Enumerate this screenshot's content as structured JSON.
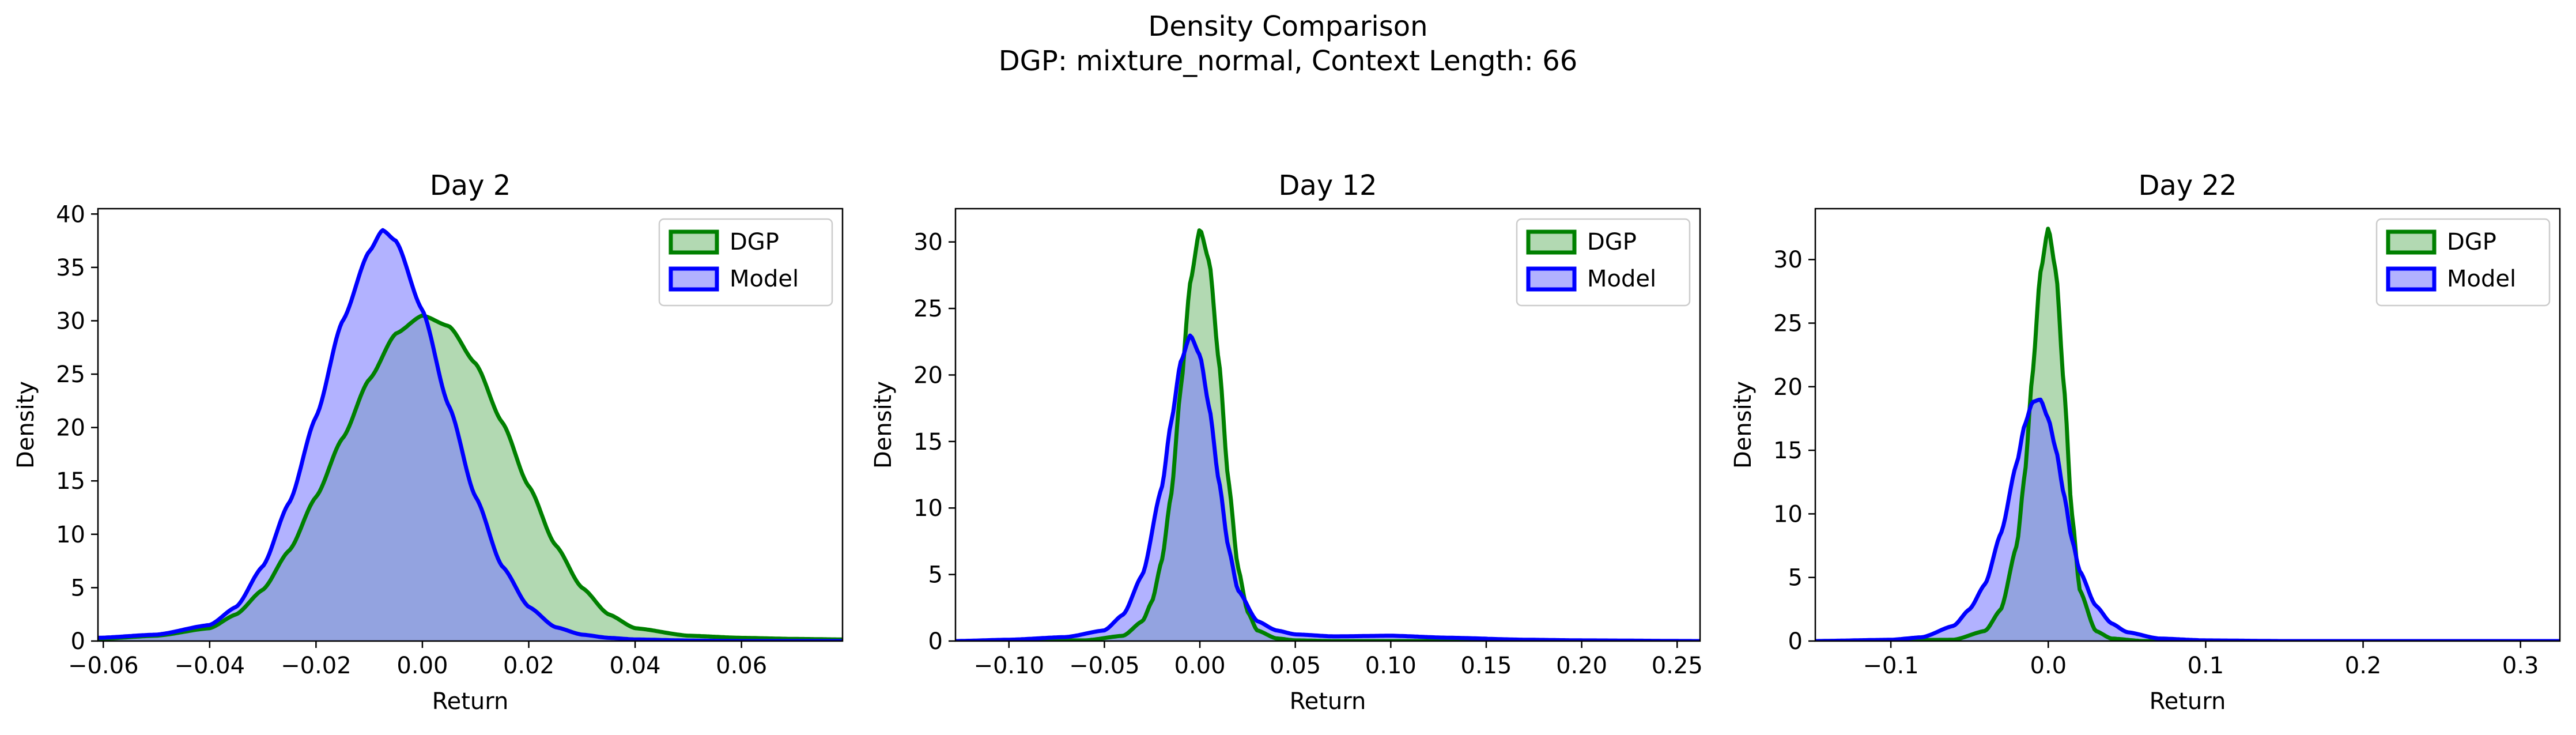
{
  "figure": {
    "title_line1": "Density Comparison",
    "title_line2": "DGP: mixture_normal, Context Length: 66"
  },
  "colors": {
    "dgp_line": "#008000",
    "dgp_fill": "#7fbf7f",
    "model_line": "#0000ff",
    "model_fill": "#7f7fff",
    "overlap_fill": "#7f9fbf"
  },
  "chart_data": [
    {
      "type": "area",
      "title": "Day 2",
      "xlabel": "Return",
      "ylabel": "Density",
      "xlim": [
        -0.061,
        0.079
      ],
      "ylim": [
        0,
        40.5
      ],
      "xticks": [
        -0.06,
        -0.04,
        -0.02,
        0.0,
        0.02,
        0.04,
        0.06
      ],
      "xtick_labels": [
        "−0.06",
        "−0.04",
        "−0.02",
        "0.00",
        "0.02",
        "0.04",
        "0.06"
      ],
      "yticks": [
        0,
        5,
        10,
        15,
        20,
        25,
        30,
        35,
        40
      ],
      "ytick_labels": [
        "0",
        "5",
        "10",
        "15",
        "20",
        "25",
        "30",
        "35",
        "40"
      ],
      "legend": "top-right",
      "series": [
        {
          "name": "DGP",
          "x": [
            -0.061,
            -0.05,
            -0.04,
            -0.035,
            -0.03,
            -0.025,
            -0.02,
            -0.015,
            -0.01,
            -0.005,
            0.0,
            0.005,
            0.01,
            0.015,
            0.02,
            0.025,
            0.03,
            0.035,
            0.04,
            0.05,
            0.06,
            0.07,
            0.079
          ],
          "y": [
            0.2,
            0.5,
            1.2,
            2.5,
            4.8,
            8.5,
            13.5,
            19.0,
            24.5,
            28.8,
            30.5,
            29.5,
            26.0,
            20.5,
            14.5,
            9.0,
            5.0,
            2.5,
            1.2,
            0.5,
            0.3,
            0.2,
            0.15
          ]
        },
        {
          "name": "Model",
          "x": [
            -0.061,
            -0.05,
            -0.04,
            -0.035,
            -0.03,
            -0.025,
            -0.02,
            -0.015,
            -0.01,
            -0.0075,
            -0.005,
            0.0,
            0.005,
            0.01,
            0.015,
            0.02,
            0.025,
            0.03,
            0.035,
            0.04,
            0.05,
            0.06,
            0.079
          ],
          "y": [
            0.3,
            0.6,
            1.5,
            3.2,
            7.0,
            13.0,
            21.0,
            30.0,
            36.5,
            38.5,
            37.5,
            31.0,
            22.0,
            13.5,
            7.0,
            3.2,
            1.3,
            0.6,
            0.3,
            0.15,
            0.05,
            0.0,
            0.0
          ]
        }
      ]
    },
    {
      "type": "area",
      "title": "Day 12",
      "xlabel": "Return",
      "ylabel": "Density",
      "xlim": [
        -0.128,
        0.262
      ],
      "ylim": [
        0,
        32.5
      ],
      "xticks": [
        -0.1,
        -0.05,
        0.0,
        0.05,
        0.1,
        0.15,
        0.2,
        0.25
      ],
      "xtick_labels": [
        "−0.10",
        "−0.05",
        "0.00",
        "0.05",
        "0.10",
        "0.15",
        "0.20",
        "0.25"
      ],
      "yticks": [
        0,
        5,
        10,
        15,
        20,
        25,
        30
      ],
      "ytick_labels": [
        "0",
        "5",
        "10",
        "15",
        "20",
        "25",
        "30"
      ],
      "legend": "top-right",
      "series": [
        {
          "name": "DGP",
          "x": [
            -0.128,
            -0.06,
            -0.04,
            -0.03,
            -0.025,
            -0.02,
            -0.015,
            -0.01,
            -0.005,
            0.0,
            0.005,
            0.01,
            0.015,
            0.02,
            0.025,
            0.03,
            0.04,
            0.05,
            0.07,
            0.1,
            0.15,
            0.2,
            0.262
          ],
          "y": [
            0.0,
            0.05,
            0.4,
            1.5,
            3.0,
            6.0,
            11.0,
            19.0,
            27.0,
            31.0,
            28.5,
            21.0,
            12.0,
            5.5,
            2.2,
            0.8,
            0.2,
            0.05,
            0.0,
            0.0,
            0.0,
            0.0,
            0.0
          ]
        },
        {
          "name": "Model",
          "x": [
            -0.128,
            -0.1,
            -0.07,
            -0.05,
            -0.04,
            -0.03,
            -0.02,
            -0.015,
            -0.01,
            -0.005,
            0.0,
            0.005,
            0.01,
            0.015,
            0.02,
            0.03,
            0.04,
            0.05,
            0.07,
            0.1,
            0.13,
            0.17,
            0.2,
            0.262
          ],
          "y": [
            0.0,
            0.1,
            0.3,
            0.8,
            2.0,
            5.0,
            11.5,
            16.5,
            21.0,
            23.0,
            21.5,
            17.5,
            12.0,
            7.0,
            3.8,
            1.5,
            0.8,
            0.5,
            0.35,
            0.4,
            0.25,
            0.1,
            0.05,
            0.0
          ]
        }
      ]
    },
    {
      "type": "area",
      "title": "Day 22",
      "xlabel": "Return",
      "ylabel": "Density",
      "xlim": [
        -0.148,
        0.325
      ],
      "ylim": [
        0,
        34.0
      ],
      "xticks": [
        -0.1,
        0.0,
        0.1,
        0.2,
        0.3
      ],
      "xtick_labels": [
        "−0.1",
        "0.0",
        "0.1",
        "0.2",
        "0.3"
      ],
      "yticks": [
        0,
        5,
        10,
        15,
        20,
        25,
        30
      ],
      "ytick_labels": [
        "0",
        "5",
        "10",
        "15",
        "20",
        "25",
        "30"
      ],
      "legend": "top-right",
      "series": [
        {
          "name": "DGP",
          "x": [
            -0.148,
            -0.06,
            -0.04,
            -0.03,
            -0.02,
            -0.015,
            -0.01,
            -0.005,
            0.0,
            0.005,
            0.01,
            0.015,
            0.02,
            0.03,
            0.04,
            0.06,
            0.1,
            0.2,
            0.325
          ],
          "y": [
            0.0,
            0.1,
            0.8,
            2.5,
            7.5,
            13.0,
            21.0,
            29.0,
            32.5,
            29.0,
            20.0,
            10.0,
            4.0,
            0.8,
            0.2,
            0.0,
            0.0,
            0.0,
            0.0
          ]
        },
        {
          "name": "Model",
          "x": [
            -0.148,
            -0.1,
            -0.08,
            -0.06,
            -0.05,
            -0.04,
            -0.03,
            -0.02,
            -0.015,
            -0.01,
            -0.005,
            0.0,
            0.005,
            0.01,
            0.015,
            0.02,
            0.03,
            0.04,
            0.05,
            0.07,
            0.1,
            0.15,
            0.2,
            0.325
          ],
          "y": [
            0.0,
            0.1,
            0.3,
            1.2,
            2.5,
            4.5,
            8.5,
            14.0,
            17.0,
            18.8,
            19.0,
            17.5,
            15.0,
            11.5,
            8.0,
            5.5,
            2.8,
            1.4,
            0.7,
            0.2,
            0.05,
            0.0,
            0.0,
            0.0
          ]
        }
      ]
    }
  ]
}
